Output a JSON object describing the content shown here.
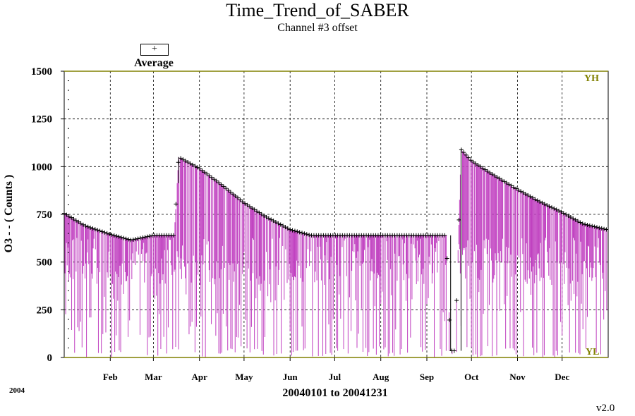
{
  "header": {
    "title": "Time_Trend_of_SABER",
    "subtitle": "Channel #3 offset"
  },
  "legend": {
    "symbol": "+",
    "label": "Average"
  },
  "footer": {
    "year": "2004",
    "version": "v2.0"
  },
  "colors": {
    "series": "#c040c0",
    "average": "#000000",
    "limit_line": "#808000",
    "grid": "#000000"
  },
  "chart_data": {
    "type": "line",
    "title": "Time_Trend_of_SABER",
    "subtitle": "Channel #3 offset",
    "xlabel": "20040101 to 20041231",
    "ylabel": "O3 - - ( Counts )",
    "ylim": [
      0,
      1500
    ],
    "yticks": [
      "0",
      "250",
      "500",
      "750",
      "1000",
      "1250",
      "1500"
    ],
    "xlim": [
      "2004-01-01",
      "2004-12-31"
    ],
    "x_tick_labels": [
      "Feb",
      "Mar",
      "Apr",
      "May",
      "Jun",
      "Jul",
      "Aug",
      "Sep",
      "Oct",
      "Nov",
      "Dec"
    ],
    "limit_labels": {
      "upper": "YH",
      "lower": "YL"
    },
    "grid": true,
    "legend_position": "top-left",
    "series": [
      {
        "name": "Average",
        "marker": "+",
        "x": [
          "2004-01-01",
          "2004-01-15",
          "2004-02-01",
          "2004-02-15",
          "2004-03-01",
          "2004-03-15",
          "2004-03-18",
          "2004-04-01",
          "2004-04-15",
          "2004-05-01",
          "2004-05-15",
          "2004-06-01",
          "2004-06-15",
          "2004-07-01",
          "2004-08-01",
          "2004-09-01",
          "2004-09-14",
          "2004-09-17",
          "2004-09-20",
          "2004-09-24",
          "2004-10-01",
          "2004-10-15",
          "2004-11-01",
          "2004-11-15",
          "2004-12-01",
          "2004-12-15",
          "2004-12-31"
        ],
        "values": [
          755,
          690,
          645,
          615,
          640,
          640,
          1050,
          990,
          910,
          810,
          740,
          670,
          640,
          640,
          640,
          640,
          640,
          35,
          35,
          1090,
          1030,
          960,
          880,
          820,
          760,
          700,
          670
        ]
      }
    ]
  }
}
